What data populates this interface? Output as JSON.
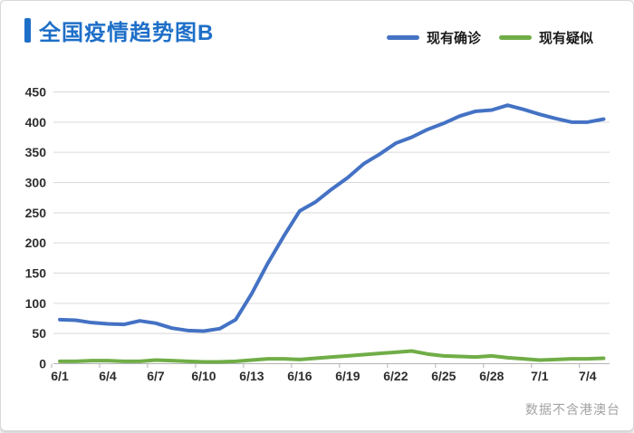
{
  "header": {
    "title": "全国疫情趋势图B"
  },
  "footer": {
    "note": "数据不含港澳台"
  },
  "colors": {
    "title_accent": "#1e6fc8",
    "confirmed_line": "#4472C4",
    "suspected_line": "#70AD47",
    "gridline": "#d9d9d9",
    "axis_line": "#b3b3b3",
    "tick_label": "#2e2e2e",
    "footer_text": "#a3a3a3"
  },
  "chart_data": {
    "type": "line",
    "title": "全国疫情趋势图B",
    "x": [
      "6/1",
      "6/2",
      "6/3",
      "6/4",
      "6/5",
      "6/6",
      "6/7",
      "6/8",
      "6/9",
      "6/10",
      "6/11",
      "6/12",
      "6/13",
      "6/14",
      "6/15",
      "6/16",
      "6/17",
      "6/18",
      "6/19",
      "6/20",
      "6/21",
      "6/22",
      "6/23",
      "6/24",
      "6/25",
      "6/26",
      "6/27",
      "6/28",
      "6/29",
      "6/30",
      "7/1",
      "7/2",
      "7/3",
      "7/4",
      "7/5"
    ],
    "series": [
      {
        "name": "现有确诊",
        "color": "#4472C4",
        "values": [
          73,
          72,
          68,
          66,
          65,
          71,
          67,
          59,
          55,
          54,
          58,
          73,
          116,
          166,
          211,
          253,
          268,
          289,
          308,
          331,
          347,
          365,
          375,
          388,
          398,
          410,
          418,
          420,
          428,
          421,
          413,
          406,
          400,
          400,
          405
        ]
      },
      {
        "name": "现有疑似",
        "color": "#70AD47",
        "values": [
          4,
          4,
          5,
          5,
          4,
          4,
          6,
          5,
          4,
          3,
          3,
          4,
          6,
          8,
          8,
          7,
          9,
          11,
          13,
          15,
          17,
          19,
          21,
          16,
          13,
          12,
          11,
          13,
          10,
          8,
          6,
          7,
          8,
          8,
          9
        ]
      }
    ],
    "x_tick_labels": [
      "6/1",
      "6/4",
      "6/7",
      "6/10",
      "6/13",
      "6/16",
      "6/19",
      "6/22",
      "6/25",
      "6/28",
      "7/1",
      "7/4"
    ],
    "x_tick_indices": [
      0,
      3,
      6,
      9,
      12,
      15,
      18,
      21,
      24,
      27,
      30,
      33
    ],
    "y_ticks": [
      0,
      50,
      100,
      150,
      200,
      250,
      300,
      350,
      400,
      450
    ],
    "ylim": [
      0,
      450
    ],
    "grid": "horizontal",
    "legend_position": "top-right",
    "annotation": "数据不含港澳台"
  }
}
